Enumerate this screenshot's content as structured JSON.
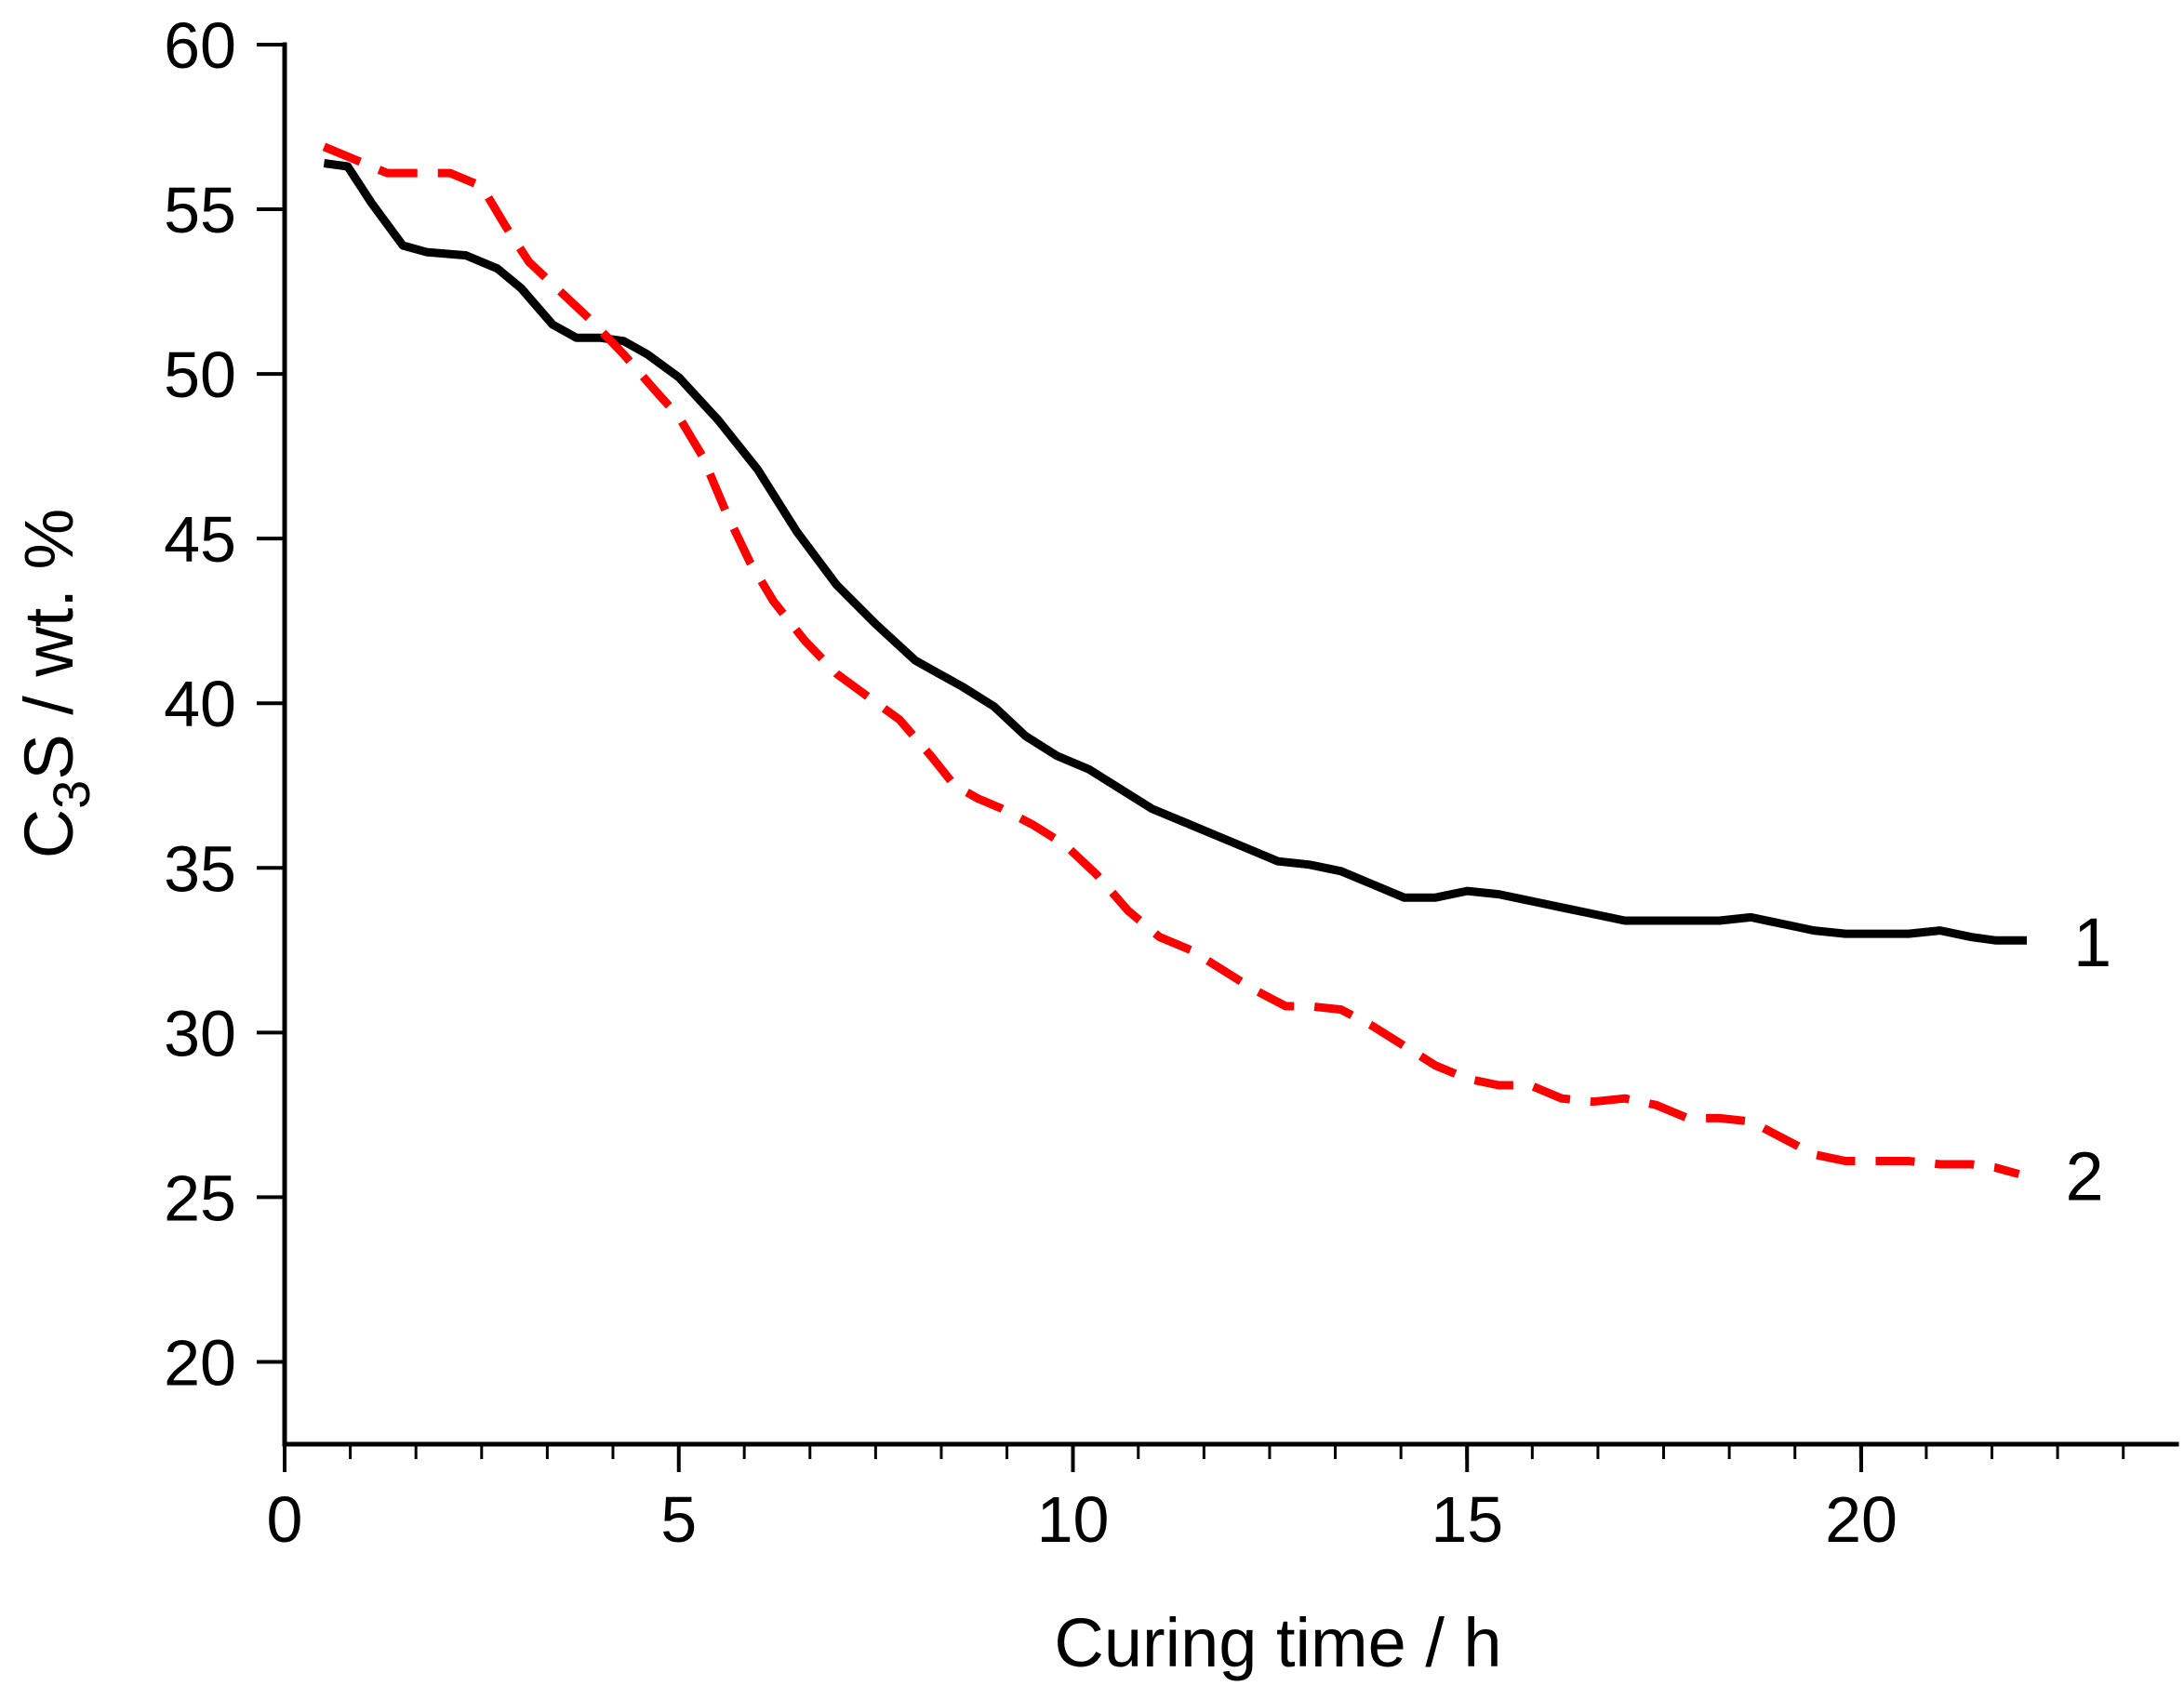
{
  "chart_data": {
    "type": "line",
    "title": "",
    "xlabel": "Curing time / h",
    "ylabel": {
      "prefix": "C",
      "subscript": "3",
      "suffix": "S / wt. %"
    },
    "xlim": [
      0,
      24
    ],
    "ylim": [
      17.5,
      60
    ],
    "x_major_ticks": [
      0,
      5,
      10,
      15,
      20
    ],
    "x_minor_step": 0.833,
    "y_major_ticks": [
      20,
      25,
      30,
      35,
      40,
      45,
      50,
      55,
      60
    ],
    "grid": false,
    "legend": "none",
    "series": [
      {
        "name": "1",
        "label": "1",
        "color": "#000000",
        "style": "solid",
        "x": [
          0.5,
          0.8,
          1.1,
          1.5,
          1.8,
          2.3,
          2.7,
          3.0,
          3.4,
          3.7,
          4.0,
          4.3,
          4.6,
          5.0,
          5.5,
          6.0,
          6.5,
          7.0,
          7.5,
          8.0,
          8.3,
          8.6,
          9.0,
          9.4,
          9.8,
          10.2,
          10.6,
          11.0,
          11.4,
          11.8,
          12.2,
          12.6,
          13.0,
          13.4,
          13.8,
          14.2,
          14.6,
          15.0,
          15.4,
          15.8,
          16.2,
          16.6,
          17.0,
          17.4,
          17.8,
          18.2,
          18.6,
          19.0,
          19.4,
          19.8,
          20.2,
          20.6,
          21.0,
          21.4,
          21.7,
          22.1
        ],
        "values": [
          56.4,
          56.3,
          55.2,
          53.9,
          53.7,
          53.6,
          53.2,
          52.6,
          51.5,
          51.1,
          51.1,
          51.0,
          50.6,
          49.9,
          48.6,
          47.1,
          45.2,
          43.6,
          42.4,
          41.3,
          40.9,
          40.5,
          39.9,
          39.0,
          38.4,
          38.0,
          37.4,
          36.8,
          36.4,
          36.0,
          35.6,
          35.2,
          35.1,
          34.9,
          34.5,
          34.1,
          34.1,
          34.3,
          34.2,
          34.0,
          33.8,
          33.6,
          33.4,
          33.4,
          33.4,
          33.4,
          33.5,
          33.3,
          33.1,
          33.0,
          33.0,
          33.0,
          33.1,
          32.9,
          32.8,
          32.8
        ]
      },
      {
        "name": "2",
        "label": "2",
        "color": "#ff0000",
        "style": "dashed",
        "x": [
          0.5,
          0.9,
          1.3,
          1.7,
          2.1,
          2.5,
          2.8,
          3.1,
          3.5,
          3.9,
          4.3,
          4.7,
          5.0,
          5.3,
          5.6,
          5.9,
          6.2,
          6.6,
          7.0,
          7.4,
          7.8,
          8.2,
          8.5,
          8.8,
          9.1,
          9.5,
          9.9,
          10.3,
          10.7,
          11.1,
          11.5,
          11.9,
          12.3,
          12.7,
          13.0,
          13.4,
          13.8,
          14.2,
          14.6,
          15.0,
          15.4,
          15.8,
          16.2,
          16.6,
          17.0,
          17.4,
          17.8,
          18.2,
          18.6,
          19.0,
          19.4,
          19.8,
          20.2,
          20.6,
          21.0,
          21.4,
          21.7,
          22.0
        ],
        "values": [
          56.9,
          56.5,
          56.1,
          56.1,
          56.1,
          55.7,
          54.5,
          53.4,
          52.5,
          51.6,
          50.6,
          49.5,
          48.7,
          47.5,
          45.8,
          44.3,
          43.1,
          41.9,
          40.9,
          40.2,
          39.5,
          38.4,
          37.5,
          37.1,
          36.8,
          36.3,
          35.7,
          34.8,
          33.7,
          32.9,
          32.5,
          31.9,
          31.3,
          30.8,
          30.8,
          30.7,
          30.2,
          29.6,
          29.0,
          28.6,
          28.4,
          28.4,
          28.0,
          27.9,
          28.0,
          27.8,
          27.4,
          27.4,
          27.3,
          26.8,
          26.3,
          26.1,
          26.1,
          26.1,
          26.0,
          26.0,
          25.9,
          25.7
        ]
      }
    ]
  }
}
